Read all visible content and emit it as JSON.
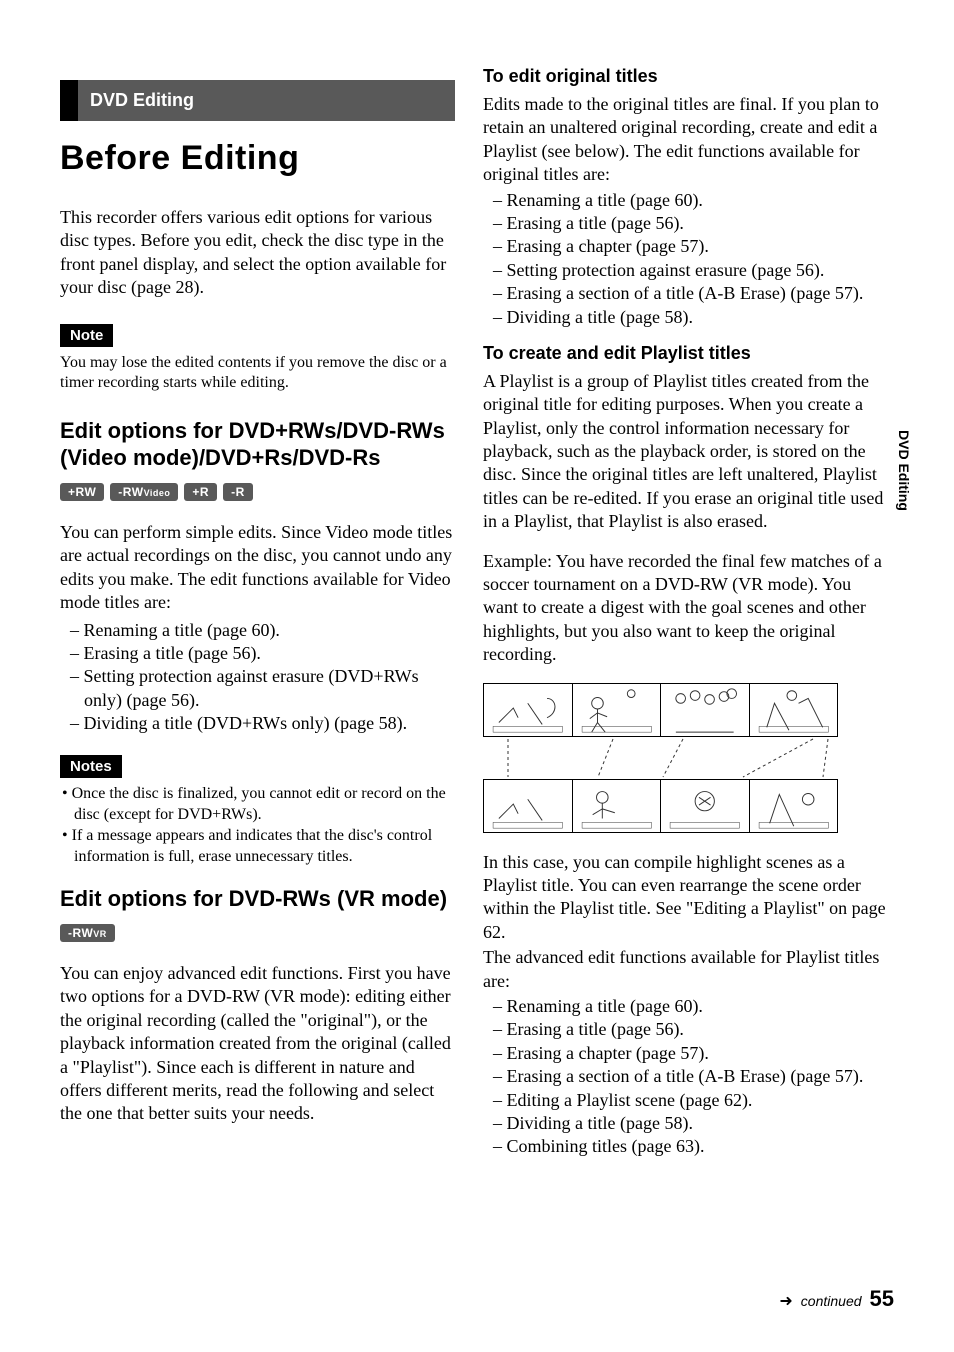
{
  "side_tab": "DVD Editing",
  "left": {
    "section_header": "DVD Editing",
    "title": "Before Editing",
    "intro": "This recorder offers various edit options for various disc types. Before you edit, check the disc type in the front panel display, and select the option available for your disc (page 28).",
    "note_label": "Note",
    "note_text": "You may lose the edited contents if you remove the disc or a timer recording starts while editing.",
    "h2_a": "Edit options for DVD+RWs/DVD-RWs (Video mode)/DVD+Rs/DVD-Rs",
    "badges_a": [
      {
        "text": "+RW",
        "sub": ""
      },
      {
        "text": "-RW",
        "sub": "Video"
      },
      {
        "text": "+R",
        "sub": ""
      },
      {
        "text": "-R",
        "sub": ""
      }
    ],
    "para_a": "You can perform simple edits. Since Video mode titles are actual recordings on the disc, you cannot undo any edits you make. The edit functions available for Video mode titles are:",
    "list_a": [
      "Renaming a title (page 60).",
      "Erasing a title (page 56).",
      "Setting protection against erasure (DVD+RWs only) (page 56).",
      "Dividing a title (DVD+RWs only) (page 58)."
    ],
    "notes_label": "Notes",
    "notes_list": [
      "Once the disc is finalized, you cannot edit or record on the disc (except for DVD+RWs).",
      "If a message appears and indicates that the disc's control information is full, erase unnecessary titles."
    ],
    "h2_b": "Edit options for DVD-RWs (VR mode)",
    "badges_b": [
      {
        "text": "-RW",
        "sub": "VR"
      }
    ],
    "para_b": "You can enjoy advanced edit functions. First you have two options for a DVD-RW (VR mode): editing either the original recording (called the \"original\"), or the playback information created from the original (called a \"Playlist\"). Since each is different in nature and offers different merits, read the following and select the one that better suits your needs."
  },
  "right": {
    "h3_a": "To edit original titles",
    "para_a": "Edits made to the original titles are final. If you plan to retain an unaltered original recording, create and edit a Playlist (see below). The edit functions available for original titles are:",
    "list_a": [
      "Renaming a title (page 60).",
      "Erasing a title (page 56).",
      "Erasing a chapter (page 57).",
      "Setting protection against erasure (page 56).",
      "Erasing a section of a title (A-B Erase) (page 57).",
      "Dividing a title (page 58)."
    ],
    "h3_b": "To create and edit Playlist titles",
    "para_b": "A Playlist is a group of Playlist titles created from the original title for editing purposes. When you create a Playlist, only the control information necessary for playback, such as the playback order, is stored on the disc. Since the original titles are left unaltered, Playlist titles can be re-edited. If you erase an original title used in a Playlist, that Playlist is also erased.",
    "para_c": "Example: You have recorded the final few matches of a soccer tournament on a DVD-RW (VR mode). You want to create a digest with the goal scenes and other highlights, but you also want to keep the original recording.",
    "para_d": "In this case, you can compile highlight scenes as a Playlist title. You can even rearrange the scene order within the Playlist title. See \"Editing a Playlist\" on page 62.",
    "para_e": "The advanced edit functions available for Playlist titles are:",
    "list_b": [
      "Renaming a title (page 60).",
      "Erasing a title (page 56).",
      "Erasing a chapter (page 57).",
      "Erasing a section of a title (A-B Erase) (page 57).",
      "Editing a Playlist scene (page 62).",
      "Dividing a title (page 58).",
      "Combining titles (page 63)."
    ]
  },
  "footer": {
    "arrow": "➜",
    "continued": "continued",
    "page": "55"
  }
}
